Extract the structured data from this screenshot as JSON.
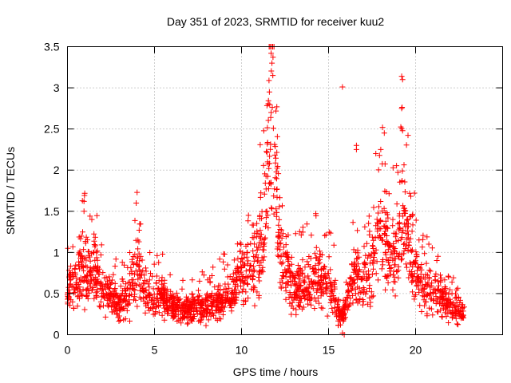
{
  "chart_data": {
    "type": "scatter",
    "title": "Day 351 of 2023, SRMTID for receiver kuu2",
    "xlabel": "GPS time / hours",
    "ylabel": "SRMTID / TECUs",
    "xlim": [
      0,
      25
    ],
    "ylim": [
      0,
      3.5
    ],
    "xticks": [
      0,
      5,
      10,
      15,
      20
    ],
    "yticks": [
      0,
      0.5,
      1,
      1.5,
      2,
      2.5,
      3,
      3.5
    ],
    "xtick_labels": [
      "0",
      "5",
      "10",
      "15",
      "20"
    ],
    "ytick_labels": [
      "0",
      "0.5",
      "1",
      "1.5",
      "2",
      "2.5",
      "3",
      "3.5"
    ],
    "grid": true,
    "marker": "+",
    "color": "#ff0000",
    "series": [
      {
        "name": "SRMTID",
        "profile": [
          {
            "x": 0.0,
            "y": 0.55
          },
          {
            "x": 0.5,
            "y": 0.7
          },
          {
            "x": 1.0,
            "y": 0.8
          },
          {
            "x": 1.5,
            "y": 0.75
          },
          {
            "x": 2.0,
            "y": 0.55
          },
          {
            "x": 2.5,
            "y": 0.5
          },
          {
            "x": 3.0,
            "y": 0.4
          },
          {
            "x": 3.5,
            "y": 0.45
          },
          {
            "x": 4.0,
            "y": 0.85
          },
          {
            "x": 4.5,
            "y": 0.5
          },
          {
            "x": 5.0,
            "y": 0.45
          },
          {
            "x": 5.5,
            "y": 0.45
          },
          {
            "x": 6.0,
            "y": 0.35
          },
          {
            "x": 6.5,
            "y": 0.3
          },
          {
            "x": 7.0,
            "y": 0.3
          },
          {
            "x": 7.5,
            "y": 0.35
          },
          {
            "x": 8.0,
            "y": 0.35
          },
          {
            "x": 8.5,
            "y": 0.4
          },
          {
            "x": 9.0,
            "y": 0.45
          },
          {
            "x": 9.5,
            "y": 0.5
          },
          {
            "x": 10.0,
            "y": 0.8
          },
          {
            "x": 10.5,
            "y": 0.7
          },
          {
            "x": 11.0,
            "y": 1.0
          },
          {
            "x": 11.3,
            "y": 1.3
          },
          {
            "x": 11.5,
            "y": 2.0
          },
          {
            "x": 11.75,
            "y": 2.8
          },
          {
            "x": 12.0,
            "y": 1.6
          },
          {
            "x": 12.3,
            "y": 0.9
          },
          {
            "x": 12.7,
            "y": 0.75
          },
          {
            "x": 13.0,
            "y": 0.55
          },
          {
            "x": 13.5,
            "y": 0.6
          },
          {
            "x": 14.0,
            "y": 0.65
          },
          {
            "x": 14.5,
            "y": 0.7
          },
          {
            "x": 15.0,
            "y": 0.6
          },
          {
            "x": 15.3,
            "y": 0.5
          },
          {
            "x": 15.7,
            "y": 0.2
          },
          {
            "x": 16.0,
            "y": 0.35
          },
          {
            "x": 16.5,
            "y": 0.7
          },
          {
            "x": 17.0,
            "y": 0.6
          },
          {
            "x": 17.5,
            "y": 0.85
          },
          {
            "x": 18.0,
            "y": 1.4
          },
          {
            "x": 18.5,
            "y": 0.95
          },
          {
            "x": 19.0,
            "y": 1.0
          },
          {
            "x": 19.3,
            "y": 1.4
          },
          {
            "x": 19.7,
            "y": 1.0
          },
          {
            "x": 20.0,
            "y": 0.75
          },
          {
            "x": 20.5,
            "y": 0.55
          },
          {
            "x": 21.0,
            "y": 0.55
          },
          {
            "x": 21.5,
            "y": 0.45
          },
          {
            "x": 22.0,
            "y": 0.35
          },
          {
            "x": 22.5,
            "y": 0.3
          },
          {
            "x": 22.8,
            "y": 0.2
          }
        ],
        "x_range": [
          0.0,
          22.8
        ],
        "point_count": 2200,
        "notable_points": [
          {
            "x": 11.7,
            "y": 3.42
          },
          {
            "x": 11.75,
            "y": 3.3
          },
          {
            "x": 11.8,
            "y": 3.15
          },
          {
            "x": 11.6,
            "y": 2.95
          },
          {
            "x": 11.7,
            "y": 2.7
          },
          {
            "x": 11.5,
            "y": 2.1
          },
          {
            "x": 15.8,
            "y": 3.01
          },
          {
            "x": 19.2,
            "y": 3.14
          },
          {
            "x": 19.25,
            "y": 3.1
          },
          {
            "x": 19.2,
            "y": 2.75
          },
          {
            "x": 19.25,
            "y": 2.48
          },
          {
            "x": 18.1,
            "y": 2.52
          },
          {
            "x": 18.2,
            "y": 2.45
          },
          {
            "x": 18.0,
            "y": 2.25
          },
          {
            "x": 16.6,
            "y": 2.3
          },
          {
            "x": 16.6,
            "y": 2.25
          },
          {
            "x": 4.0,
            "y": 1.73
          },
          {
            "x": 3.95,
            "y": 1.6
          },
          {
            "x": 0.95,
            "y": 1.62
          },
          {
            "x": 0.95,
            "y": 1.5
          },
          {
            "x": 1.4,
            "y": 1.4
          },
          {
            "x": 10.4,
            "y": 1.45
          },
          {
            "x": 15.8,
            "y": 0.02
          },
          {
            "x": 15.9,
            "y": 0.0
          }
        ]
      }
    ]
  }
}
